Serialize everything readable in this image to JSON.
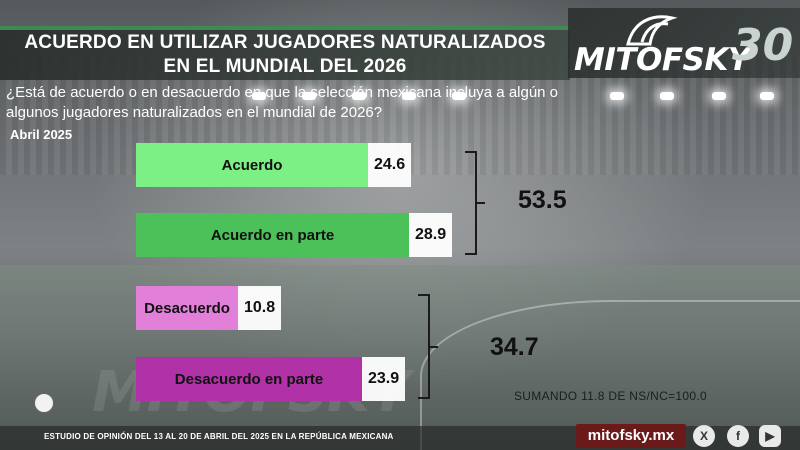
{
  "header": {
    "title_line1": "ACUERDO EN UTILIZAR JUGADORES NATURALIZADOS",
    "title_line2": "EN EL MUNDIAL DEL 2026",
    "logo": "MITOFSKY",
    "logo_number": "30"
  },
  "question": "¿Está de acuerdo o en desacuerdo en que la selección mexicana incluya a algún o algunos jugadores naturalizados en el mundial de 2026?",
  "date_label": "Abril 2025",
  "chart_data": {
    "type": "bar",
    "orientation": "horizontal",
    "categories": [
      "Acuerdo",
      "Acuerdo en parte",
      "Desacuerdo",
      "Desacuerdo en parte"
    ],
    "values": [
      24.6,
      28.9,
      10.8,
      23.9
    ],
    "colors": [
      "#7df085",
      "#4cc15a",
      "#e27fd9",
      "#b131a6"
    ],
    "groups": [
      {
        "members": [
          0,
          1
        ],
        "total": "53.5"
      },
      {
        "members": [
          2,
          3
        ],
        "total": "34.7"
      }
    ],
    "xlim": [
      0,
      30
    ]
  },
  "note": "SUMANDO 11.8 DE NS/NC=100.0",
  "footer": {
    "study": "ESTUDIO DE OPINIÓN DEL 13 AL 20 DE ABRIL DEL 2025 EN LA REPÚBLICA MEXICANA",
    "site": "mitofsky.mx",
    "social_x": "X",
    "social_facebook": "f",
    "social_youtube": "▶"
  }
}
